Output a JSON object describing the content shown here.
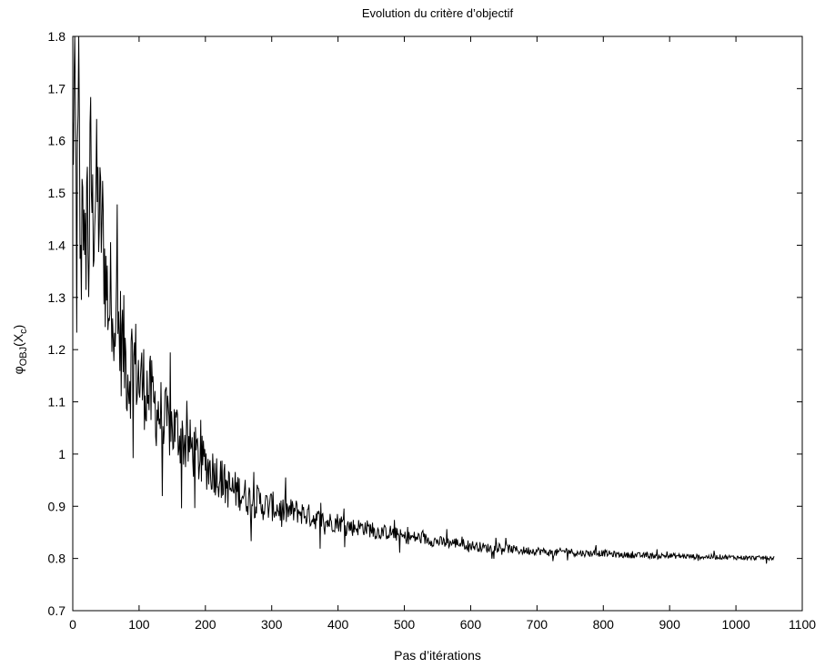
{
  "chart_data": {
    "type": "line",
    "title": "Evolution du critère d’objectif",
    "xlabel": "Pas d’itérations",
    "ylabel": {
      "symbol": "φ",
      "sub1": "OBJ",
      "mid": "(X",
      "sub2": "c",
      "end": ")"
    },
    "xlim": [
      0,
      1100
    ],
    "ylim": [
      0.7,
      1.8
    ],
    "xticks": [
      0,
      100,
      200,
      300,
      400,
      500,
      600,
      700,
      800,
      900,
      1000,
      1100
    ],
    "xtick_labels": [
      "0",
      "100",
      "200",
      "300",
      "400",
      "500",
      "600",
      "700",
      "800",
      "900",
      "1000",
      "1100"
    ],
    "yticks": [
      0.7,
      0.8,
      0.9,
      1.0,
      1.1,
      1.2,
      1.3,
      1.4,
      1.5,
      1.6,
      1.7,
      1.8
    ],
    "ytick_labels": [
      "0.7",
      "0.8",
      "0.9",
      "1",
      "1.1",
      "1.2",
      "1.3",
      "1.4",
      "1.5",
      "1.6",
      "1.7",
      "1.8"
    ],
    "grid": false,
    "legend": false,
    "line_color": "#000000",
    "series": [
      {
        "x": [
          0,
          3,
          6,
          9,
          12,
          15,
          18,
          21,
          24,
          27,
          30,
          35,
          40,
          45,
          50,
          55,
          60,
          65,
          70,
          75,
          80,
          85,
          90,
          95,
          100,
          110,
          120,
          130,
          140,
          150,
          160,
          170,
          180,
          190,
          200,
          210,
          220,
          230,
          240,
          250,
          260,
          270,
          280,
          290,
          300,
          320,
          340,
          360,
          380,
          400,
          420,
          440,
          460,
          480,
          500,
          520,
          540,
          560,
          580,
          600,
          625,
          650,
          675,
          700,
          725,
          745,
          760,
          780,
          800,
          825,
          850,
          875,
          900,
          925,
          950,
          975,
          1000,
          1030,
          1058
        ],
        "y": [
          1.58,
          1.72,
          1.35,
          1.69,
          1.3,
          1.6,
          1.26,
          1.53,
          1.37,
          1.57,
          1.44,
          1.52,
          1.45,
          1.43,
          1.33,
          1.28,
          1.32,
          1.26,
          1.23,
          1.21,
          1.18,
          1.15,
          1.19,
          1.17,
          1.14,
          1.13,
          1.1,
          1.08,
          1.06,
          1.05,
          1.04,
          1.02,
          1.01,
          0.99,
          0.98,
          0.97,
          0.96,
          0.94,
          0.93,
          0.93,
          0.92,
          0.91,
          0.91,
          0.9,
          0.9,
          0.89,
          0.89,
          0.88,
          0.87,
          0.87,
          0.86,
          0.86,
          0.85,
          0.85,
          0.84,
          0.84,
          0.835,
          0.83,
          0.83,
          0.825,
          0.82,
          0.82,
          0.815,
          0.815,
          0.81,
          0.815,
          0.81,
          0.81,
          0.81,
          0.807,
          0.806,
          0.805,
          0.805,
          0.804,
          0.803,
          0.803,
          0.802,
          0.801,
          0.801
        ]
      }
    ]
  }
}
